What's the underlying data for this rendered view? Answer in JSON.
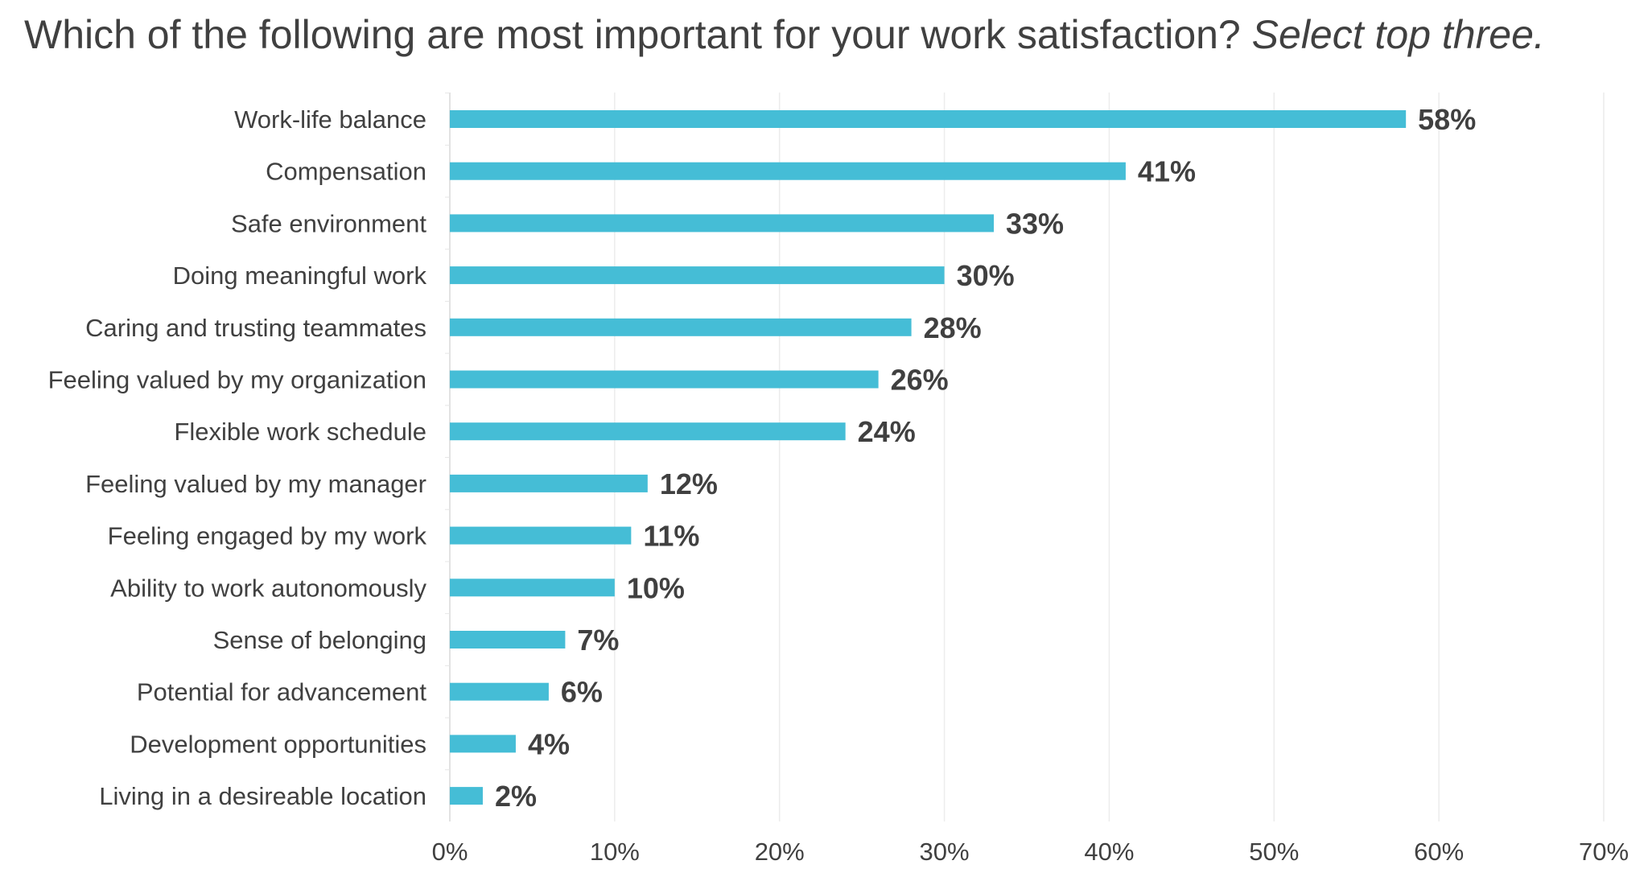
{
  "chart_data": {
    "type": "bar",
    "orientation": "horizontal",
    "title": "Which of the following are most important for your work satisfaction?",
    "subtitle": "Select top three.",
    "categories": [
      "Work-life balance",
      "Compensation",
      "Safe environment",
      "Doing meaningful work",
      "Caring and trusting teammates",
      "Feeling valued by my organization",
      "Flexible work schedule",
      "Feeling valued by my manager",
      "Feeling engaged by my work",
      "Ability to work autonomously",
      "Sense of belonging",
      "Potential for advancement",
      "Development opportunities",
      "Living in a desireable location"
    ],
    "values": [
      58,
      41,
      33,
      30,
      28,
      26,
      24,
      12,
      11,
      10,
      7,
      6,
      4,
      2
    ],
    "data_labels": [
      "58%",
      "41%",
      "33%",
      "30%",
      "28%",
      "26%",
      "24%",
      "12%",
      "11%",
      "10%",
      "7%",
      "6%",
      "4%",
      "2%"
    ],
    "xlim": [
      0,
      70
    ],
    "xticks": [
      "0%",
      "10%",
      "20%",
      "30%",
      "40%",
      "50%",
      "60%",
      "70%"
    ],
    "grid": true,
    "bar_color": "#45BDD6",
    "xlabel": "",
    "ylabel": ""
  }
}
